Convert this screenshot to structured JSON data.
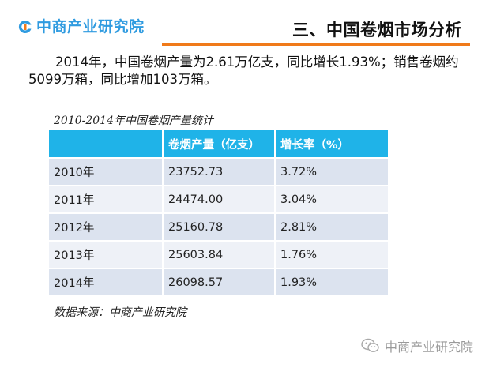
{
  "header": {
    "logo_text": "中商产业研究院",
    "section_title": "三、中国卷烟市场分析",
    "accent_color": "#f07a1a",
    "brand_color": "#2f9be0"
  },
  "paragraph": "2014年，中国卷烟产量为2.61万亿支，同比增长1.93%；销售卷烟约5099万箱，同比增加103万箱。",
  "table": {
    "caption": "2010-2014年中国卷烟产量统计",
    "header_color": "#1fb3e8",
    "columns": [
      "",
      "卷烟产量（亿支）",
      "增长率（%）"
    ],
    "rows": [
      [
        "2010年",
        "23752.73",
        "3.72%"
      ],
      [
        "2011年",
        "24474.00",
        "3.04%"
      ],
      [
        "2012年",
        "25160.78",
        "2.81%"
      ],
      [
        "2013年",
        "25603.84",
        "1.76%"
      ],
      [
        "2014年",
        "26098.57",
        "1.93%"
      ]
    ]
  },
  "source": "数据来源：中商产业研究院",
  "watermark": {
    "icon": "wechat-icon",
    "text": "中商产业研究院"
  }
}
